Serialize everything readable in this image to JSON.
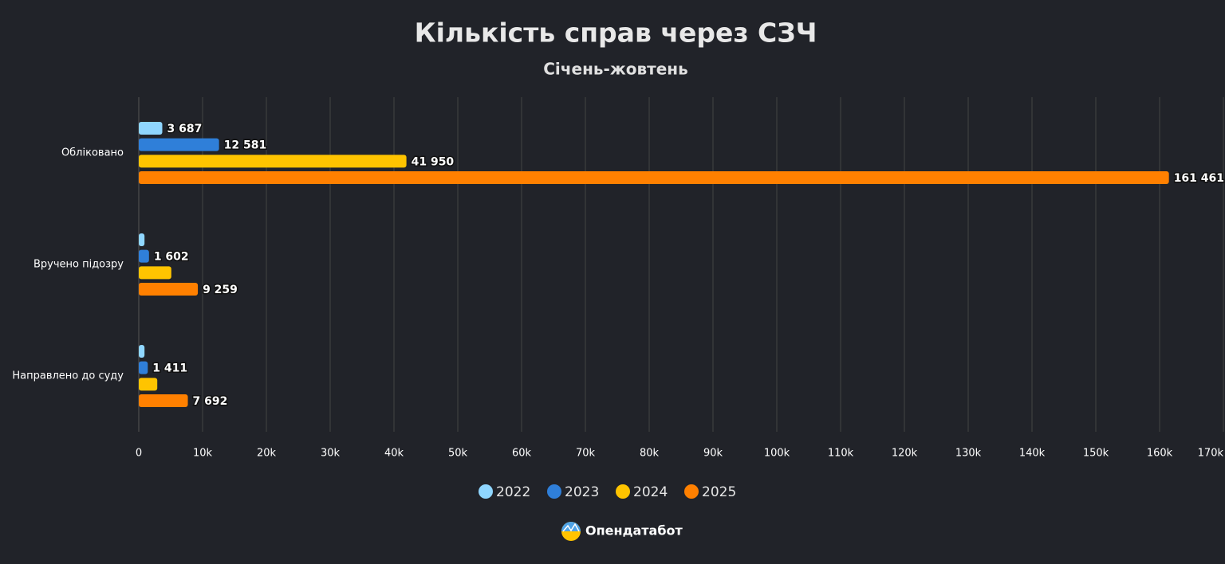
{
  "chart_data": {
    "type": "hbar",
    "title": "Кількість справ через СЗЧ",
    "subtitle": "Січень-жовтень",
    "categories": [
      "Обліковано",
      "Вручено підозру",
      "Направлено до суду"
    ],
    "series": [
      {
        "name": "2022",
        "color": "#8fd6ff",
        "values": [
          3687,
          900,
          900
        ],
        "value_labels": [
          "3 687",
          null,
          null
        ]
      },
      {
        "name": "2023",
        "color": "#2f7fd9",
        "values": [
          12581,
          1602,
          1411
        ],
        "value_labels": [
          "12 581",
          "1 602",
          "1 411"
        ]
      },
      {
        "name": "2024",
        "color": "#ffc400",
        "values": [
          41950,
          5100,
          2900
        ],
        "value_labels": [
          "41 950",
          null,
          null
        ]
      },
      {
        "name": "2025",
        "color": "#ff8000",
        "values": [
          161461,
          9259,
          7692
        ],
        "value_labels": [
          "161 461",
          "9 259",
          "7 692"
        ]
      }
    ],
    "xlim": [
      0,
      170000
    ],
    "xticks": [
      0,
      {
        "value": 10000,
        "label": "10k"
      },
      {
        "value": 20000,
        "label": "20k"
      },
      {
        "value": 30000,
        "label": "30k"
      },
      {
        "value": 40000,
        "label": "40k"
      },
      {
        "value": 50000,
        "label": "50k"
      },
      {
        "value": 60000,
        "label": "60k"
      },
      {
        "value": 70000,
        "label": "70k"
      },
      {
        "value": 80000,
        "label": "80k"
      },
      {
        "value": 90000,
        "label": "90k"
      },
      {
        "value": 100000,
        "label": "100k"
      },
      {
        "value": 110000,
        "label": "110k"
      },
      {
        "value": 120000,
        "label": "120k"
      },
      {
        "value": 130000,
        "label": "130k"
      },
      {
        "value": 140000,
        "label": "140k"
      },
      {
        "value": 150000,
        "label": "150k"
      },
      {
        "value": 160000,
        "label": "160k"
      },
      {
        "value": 170000,
        "label": "170k"
      }
    ],
    "grid": true,
    "legend": "bottom"
  },
  "footer": {
    "brand": "Опендатабот"
  }
}
